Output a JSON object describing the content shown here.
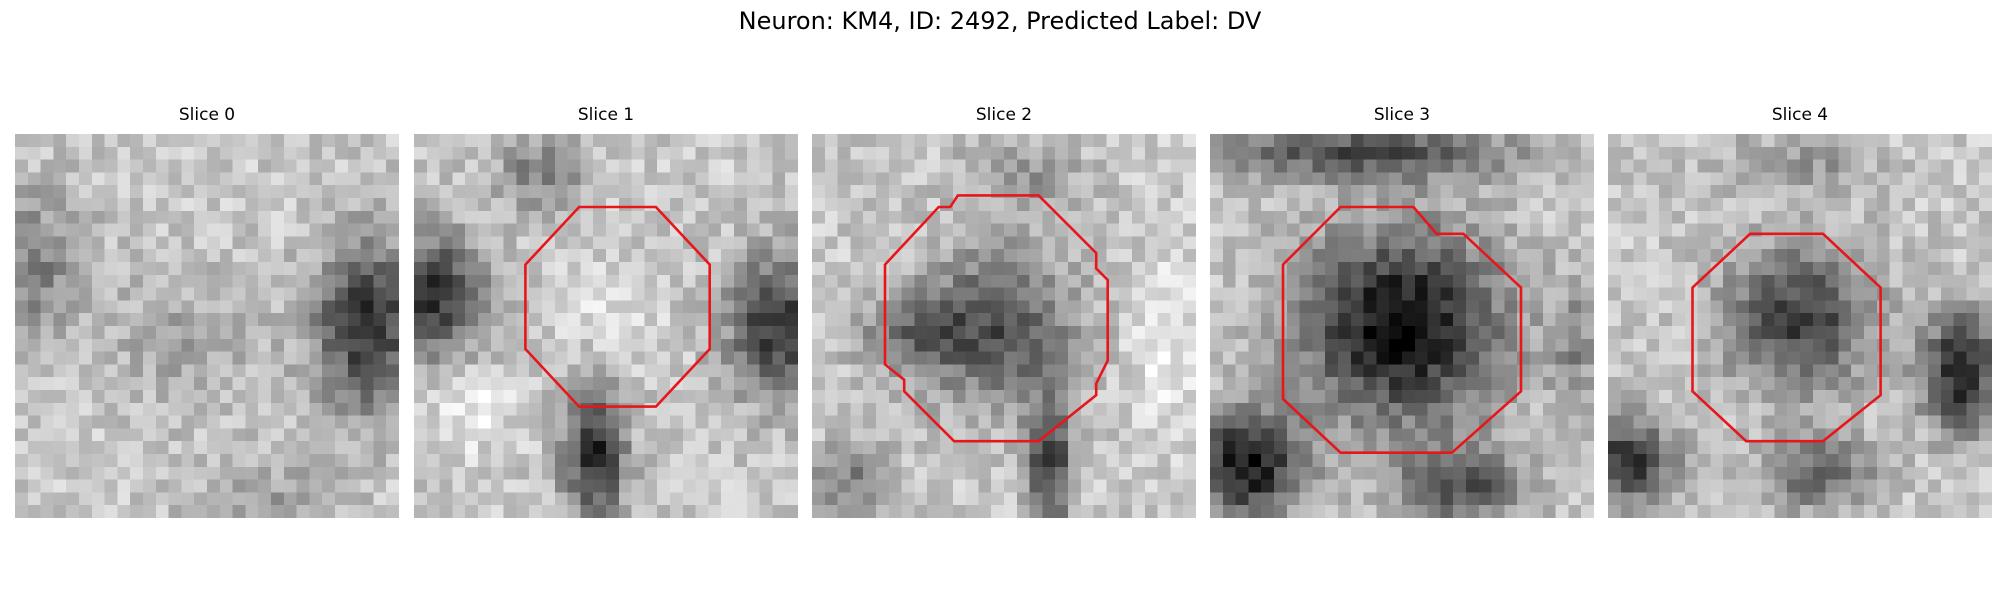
{
  "figure": {
    "title": "Neuron: KM4, ID: 2492, Predicted Label: DV"
  },
  "panels": [
    {
      "title": "Slice 0",
      "seed": 11,
      "blobs": [
        [
          0.05,
          0.35,
          0.14,
          0.2,
          70
        ],
        [
          0.92,
          0.5,
          0.14,
          0.22,
          150
        ],
        [
          0.65,
          0.95,
          0.18,
          0.1,
          40
        ],
        [
          0.45,
          0.55,
          0.2,
          0.18,
          35
        ]
      ],
      "contour": []
    },
    {
      "title": "Slice 1",
      "seed": 23,
      "blobs": [
        [
          0.05,
          0.42,
          0.13,
          0.16,
          150
        ],
        [
          0.95,
          0.5,
          0.13,
          0.18,
          150
        ],
        [
          0.47,
          0.83,
          0.08,
          0.18,
          160
        ],
        [
          0.5,
          0.47,
          0.12,
          0.14,
          -25
        ],
        [
          0.15,
          0.72,
          0.1,
          0.1,
          -40
        ],
        [
          0.33,
          0.1,
          0.12,
          0.1,
          70
        ]
      ],
      "contour": [
        [
          0.43,
          0.19
        ],
        [
          0.63,
          0.19
        ],
        [
          0.77,
          0.34
        ],
        [
          0.77,
          0.56
        ],
        [
          0.63,
          0.71
        ],
        [
          0.43,
          0.71
        ],
        [
          0.29,
          0.56
        ],
        [
          0.29,
          0.34
        ]
      ]
    },
    {
      "title": "Slice 2",
      "seed": 37,
      "blobs": [
        [
          0.48,
          0.5,
          0.2,
          0.2,
          120
        ],
        [
          0.25,
          0.52,
          0.14,
          0.1,
          70
        ],
        [
          0.62,
          0.86,
          0.06,
          0.18,
          140
        ],
        [
          0.1,
          0.9,
          0.1,
          0.1,
          70
        ],
        [
          0.92,
          0.55,
          0.1,
          0.2,
          -40
        ],
        [
          0.55,
          0.1,
          0.16,
          0.08,
          50
        ]
      ],
      "contour": [
        [
          0.38,
          0.16
        ],
        [
          0.59,
          0.16
        ],
        [
          0.74,
          0.31
        ],
        [
          0.74,
          0.35
        ],
        [
          0.77,
          0.38
        ],
        [
          0.77,
          0.59
        ],
        [
          0.74,
          0.65
        ],
        [
          0.74,
          0.68
        ],
        [
          0.59,
          0.8
        ],
        [
          0.37,
          0.8
        ],
        [
          0.24,
          0.67
        ],
        [
          0.24,
          0.64
        ],
        [
          0.19,
          0.6
        ],
        [
          0.19,
          0.34
        ],
        [
          0.33,
          0.19
        ],
        [
          0.36,
          0.19
        ]
      ]
    },
    {
      "title": "Slice 3",
      "seed": 53,
      "blobs": [
        [
          0.5,
          0.5,
          0.26,
          0.25,
          190
        ],
        [
          0.1,
          0.86,
          0.14,
          0.14,
          180
        ],
        [
          0.65,
          0.92,
          0.16,
          0.1,
          120
        ],
        [
          0.4,
          0.05,
          0.4,
          0.07,
          120
        ],
        [
          0.95,
          0.55,
          0.06,
          0.15,
          60
        ]
      ],
      "contour": [
        [
          0.34,
          0.19
        ],
        [
          0.53,
          0.19
        ],
        [
          0.59,
          0.26
        ],
        [
          0.66,
          0.26
        ],
        [
          0.81,
          0.4
        ],
        [
          0.81,
          0.67
        ],
        [
          0.63,
          0.83
        ],
        [
          0.34,
          0.83
        ],
        [
          0.19,
          0.69
        ],
        [
          0.19,
          0.34
        ]
      ]
    },
    {
      "title": "Slice 4",
      "seed": 71,
      "blobs": [
        [
          0.5,
          0.48,
          0.19,
          0.18,
          140
        ],
        [
          0.92,
          0.62,
          0.1,
          0.15,
          170
        ],
        [
          0.05,
          0.85,
          0.12,
          0.12,
          150
        ],
        [
          0.55,
          0.88,
          0.14,
          0.1,
          100
        ],
        [
          0.5,
          0.08,
          0.2,
          0.08,
          50
        ]
      ],
      "contour": [
        [
          0.37,
          0.26
        ],
        [
          0.56,
          0.26
        ],
        [
          0.71,
          0.4
        ],
        [
          0.71,
          0.68
        ],
        [
          0.56,
          0.8
        ],
        [
          0.36,
          0.8
        ],
        [
          0.22,
          0.67
        ],
        [
          0.22,
          0.4
        ]
      ]
    }
  ]
}
